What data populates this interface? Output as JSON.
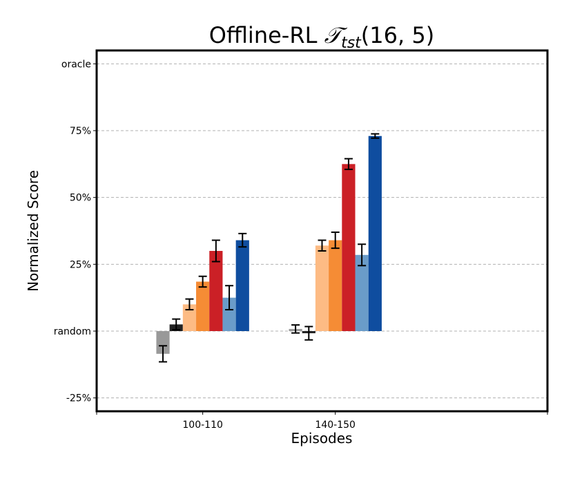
{
  "chart_data": {
    "type": "bar",
    "title": "Offline-RL",
    "title_math_symbol": "𝒯",
    "title_math_subscript": "tst",
    "title_math_args": "(16, 5)",
    "xlabel": "Episodes",
    "ylabel": "Normalized Score",
    "categories": [
      "100-110",
      "140-150"
    ],
    "y_ticks": [
      {
        "value": -25,
        "label": "-25%"
      },
      {
        "value": 0,
        "label": "random"
      },
      {
        "value": 25,
        "label": "25%"
      },
      {
        "value": 50,
        "label": "50%"
      },
      {
        "value": 75,
        "label": "75%"
      },
      {
        "value": 100,
        "label": "oracle"
      }
    ],
    "ylim": [
      -30,
      105
    ],
    "xlim": [
      -0.8,
      2.6
    ],
    "grid": "horizontal dashed",
    "series": [
      {
        "color": "#999999",
        "values": [
          -8.5,
          0.8
        ],
        "errors": [
          3.0,
          1.5
        ]
      },
      {
        "color": "#222222",
        "values": [
          2.5,
          -0.8
        ],
        "errors": [
          2.0,
          2.5
        ]
      },
      {
        "color": "#fdbb84",
        "values": [
          10.0,
          32.0
        ],
        "errors": [
          2.0,
          2.0
        ]
      },
      {
        "color": "#f58c35",
        "values": [
          18.5,
          34.0
        ],
        "errors": [
          2.0,
          3.0
        ]
      },
      {
        "color": "#cb2026",
        "values": [
          30.0,
          62.5
        ],
        "errors": [
          4.0,
          2.0
        ]
      },
      {
        "color": "#6a9cc9",
        "values": [
          12.5,
          28.5
        ],
        "errors": [
          4.5,
          4.0
        ]
      },
      {
        "color": "#0f4d9f",
        "values": [
          34.0,
          73.0
        ],
        "errors": [
          2.5,
          0.8
        ]
      }
    ]
  }
}
